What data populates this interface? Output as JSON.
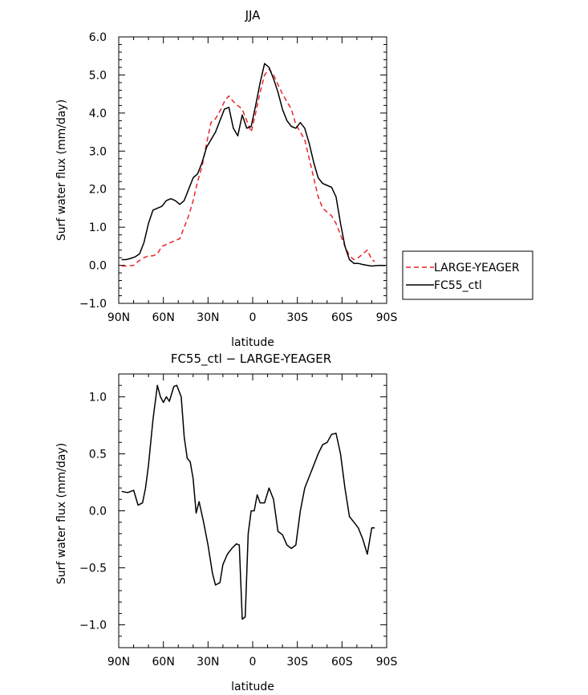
{
  "chart_data": [
    {
      "type": "line",
      "title": "JJA",
      "xlabel": "latitude",
      "ylabel": "Surf water flux (mm/day)",
      "xlim": [
        90,
        -90
      ],
      "ylim": [
        -1.0,
        6.0
      ],
      "x_ticks": [
        90,
        60,
        30,
        0,
        -30,
        -60,
        -90
      ],
      "x_tick_labels": [
        "90N",
        "60N",
        "30N",
        "0",
        "30S",
        "60S",
        "90S"
      ],
      "y_ticks": [
        -1.0,
        0.0,
        1.0,
        2.0,
        3.0,
        4.0,
        5.0,
        6.0
      ],
      "y_tick_labels": [
        "−1.0",
        "0.0",
        "1.0",
        "2.0",
        "3.0",
        "4.0",
        "5.0",
        "6.0"
      ],
      "legend": "right",
      "series": [
        {
          "name": "LARGE-YEAGER",
          "color": "#e8262a",
          "dash": "dashed",
          "x": [
            88,
            84,
            80,
            77,
            73,
            70,
            67,
            64,
            61,
            58,
            55,
            52,
            49,
            46,
            43,
            40,
            37,
            34,
            31,
            28,
            25,
            22,
            19,
            16,
            13,
            10,
            7,
            4,
            1,
            -2,
            -5,
            -8,
            -11,
            -14,
            -17,
            -20,
            -23,
            -26,
            -29,
            -32,
            -35,
            -38,
            -41,
            -44,
            -47,
            -50,
            -53,
            -56,
            -59,
            -62,
            -65,
            -68,
            -71,
            -74,
            -77,
            -80,
            -82
          ],
          "values": [
            -0.02,
            -0.02,
            0.0,
            0.1,
            0.2,
            0.25,
            0.25,
            0.3,
            0.5,
            0.55,
            0.6,
            0.65,
            0.7,
            1.0,
            1.3,
            1.7,
            2.2,
            2.6,
            3.2,
            3.75,
            3.85,
            4.05,
            4.3,
            4.45,
            4.3,
            4.2,
            4.1,
            3.8,
            3.5,
            4.0,
            4.55,
            5.0,
            5.15,
            5.0,
            4.75,
            4.5,
            4.3,
            4.1,
            3.7,
            3.5,
            3.3,
            2.8,
            2.3,
            1.8,
            1.5,
            1.4,
            1.3,
            1.1,
            0.8,
            0.5,
            0.25,
            0.15,
            0.2,
            0.3,
            0.4,
            0.15,
            0.1
          ]
        },
        {
          "name": "FC55_ctl",
          "color": "#000000",
          "dash": "solid",
          "x": [
            88,
            85,
            82,
            79,
            76,
            73,
            70,
            67,
            64,
            61,
            58,
            55,
            52,
            49,
            46,
            43,
            40,
            37,
            34,
            31,
            28,
            25,
            22,
            19,
            16,
            13,
            10,
            7,
            4,
            1,
            -2,
            -5,
            -8,
            -11,
            -14,
            -17,
            -20,
            -23,
            -26,
            -29,
            -32,
            -35,
            -38,
            -41,
            -44,
            -47,
            -50,
            -53,
            -56,
            -59,
            -62,
            -65,
            -68,
            -71,
            -74,
            -77,
            -80,
            -83,
            -86,
            -89
          ],
          "values": [
            0.15,
            0.15,
            0.18,
            0.22,
            0.3,
            0.6,
            1.1,
            1.45,
            1.5,
            1.55,
            1.7,
            1.75,
            1.7,
            1.6,
            1.7,
            2.0,
            2.3,
            2.4,
            2.7,
            3.1,
            3.3,
            3.5,
            3.8,
            4.1,
            4.15,
            3.6,
            3.4,
            3.95,
            3.6,
            3.65,
            4.2,
            4.8,
            5.3,
            5.2,
            4.9,
            4.55,
            4.1,
            3.8,
            3.65,
            3.6,
            3.75,
            3.6,
            3.2,
            2.7,
            2.3,
            2.15,
            2.1,
            2.05,
            1.8,
            1.1,
            0.5,
            0.15,
            0.05,
            0.05,
            0.02,
            0.0,
            -0.02,
            -0.01,
            0.0,
            -0.01
          ]
        }
      ]
    },
    {
      "type": "line",
      "title": "FC55_ctl − LARGE-YEAGER",
      "xlabel": "latitude",
      "ylabel": "Surf water flux (mm/day)",
      "xlim": [
        90,
        -90
      ],
      "ylim": [
        -1.2,
        1.2
      ],
      "x_ticks": [
        90,
        60,
        30,
        0,
        -30,
        -60,
        -90
      ],
      "x_tick_labels": [
        "90N",
        "60N",
        "30N",
        "0",
        "30S",
        "60S",
        "90S"
      ],
      "y_ticks": [
        -1.0,
        -0.5,
        0.0,
        0.5,
        1.0
      ],
      "y_tick_labels": [
        "−1.0",
        "−0.5",
        "0.0",
        "0.5",
        "1.0"
      ],
      "series": [
        {
          "color": "#000000",
          "dash": "solid",
          "x": [
            88,
            84,
            80,
            77,
            74,
            72,
            70,
            67,
            64,
            62,
            60,
            58,
            56,
            53,
            51,
            48,
            46,
            44,
            42,
            40,
            38,
            36,
            33,
            30,
            27,
            25,
            22,
            20,
            17,
            14,
            11,
            9,
            7,
            5,
            3,
            1,
            -1,
            -3,
            -5,
            -8,
            -11,
            -14,
            -17,
            -20,
            -23,
            -26,
            -29,
            -32,
            -35,
            -38,
            -41,
            -44,
            -47,
            -50,
            -53,
            -56,
            -59,
            -62,
            -65,
            -68,
            -71,
            -74,
            -77,
            -80,
            -82
          ],
          "values": [
            0.17,
            0.16,
            0.18,
            0.05,
            0.07,
            0.2,
            0.4,
            0.8,
            1.1,
            1.0,
            0.95,
            1.0,
            0.96,
            1.09,
            1.1,
            1.0,
            0.65,
            0.46,
            0.43,
            0.28,
            -0.02,
            0.08,
            -0.1,
            -0.3,
            -0.55,
            -0.65,
            -0.63,
            -0.47,
            -0.38,
            -0.33,
            -0.29,
            -0.3,
            -0.95,
            -0.93,
            -0.2,
            0.0,
            0.0,
            0.14,
            0.07,
            0.07,
            0.2,
            0.1,
            -0.18,
            -0.21,
            -0.3,
            -0.33,
            -0.3,
            0.0,
            0.2,
            0.3,
            0.4,
            0.5,
            0.58,
            0.6,
            0.67,
            0.68,
            0.5,
            0.2,
            -0.05,
            -0.1,
            -0.15,
            -0.25,
            -0.38,
            -0.15,
            -0.15
          ]
        }
      ]
    }
  ]
}
